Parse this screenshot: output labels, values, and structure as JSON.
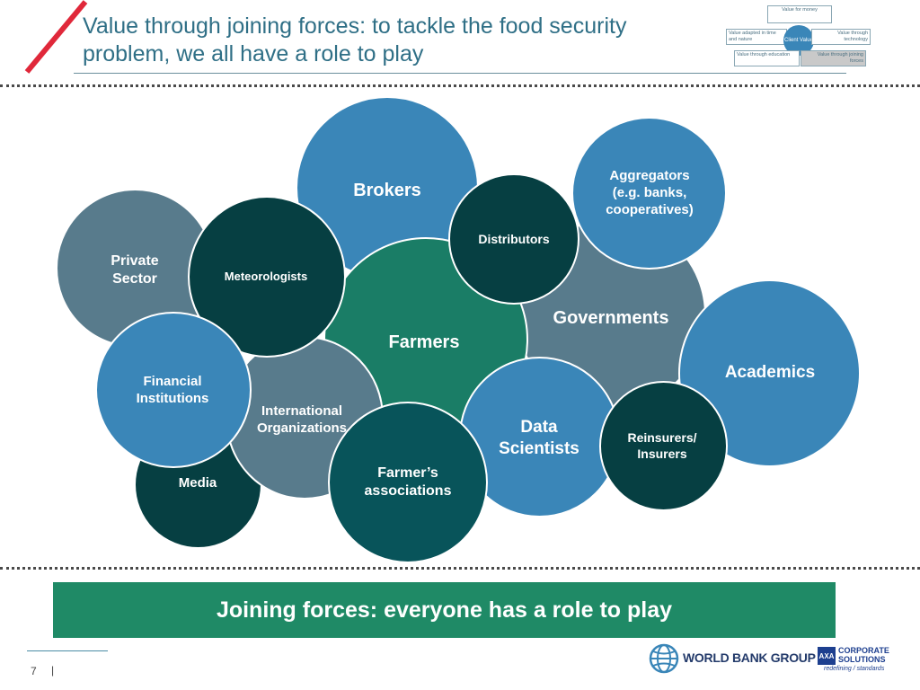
{
  "header": {
    "title_line1": "Value through joining forces: to tackle the food security",
    "title_line2": "problem, we all have a role to play"
  },
  "mini_diagram": {
    "top": "Value for money",
    "left": "Value adapted in time and nature",
    "center": "Client Value",
    "right": "Value through technology",
    "bottom_left": "Value through education",
    "bottom_right": "Value through joining forces"
  },
  "bubbles": {
    "brokers": "Brokers",
    "aggregators": "Aggregators\n(e.g. banks,\ncooperatives)",
    "distributors": "Distributors",
    "private_sector": "Private\nSector",
    "meteorologists": "Meteorologists",
    "governments": "Governments",
    "farmers": "Farmers",
    "academics": "Academics",
    "financial_institutions": "Financial\nInstitutions",
    "international_organizations": "International\nOrganizations",
    "data_scientists": "Data\nScientists",
    "reinsurers": "Reinsurers/\nInsurers",
    "media": "Media",
    "farmers_associations": "Farmer’s\nassociations"
  },
  "banner": "Joining forces: everyone has a role to play",
  "footer": {
    "page_number": "7",
    "separator": "|",
    "wbg": "WORLD BANK GROUP",
    "axa_mark": "AXA",
    "axa_line1": "CORPORATE",
    "axa_line2": "SOLUTIONS",
    "axa_tagline": "redefining / standards"
  },
  "colors": {
    "mid_blue": "#3a86b8",
    "slate": "#587b8c",
    "dark_teal": "#063f42",
    "green": "#1a7d66",
    "banner_green": "#1f8a66",
    "accent_red": "#e0283a"
  }
}
